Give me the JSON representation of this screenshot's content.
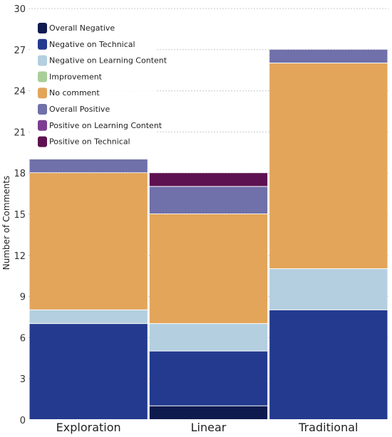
{
  "chart_data": {
    "type": "bar",
    "stacked": true,
    "title": "",
    "xlabel": "",
    "ylabel": "Number of Comments",
    "ylim": [
      0,
      30
    ],
    "yticks": [
      0,
      3,
      6,
      9,
      12,
      15,
      18,
      21,
      24,
      27,
      30
    ],
    "grid": true,
    "legend_position": "top-left",
    "categories": [
      "Exploration",
      "Linear",
      "Traditional"
    ],
    "series": [
      {
        "name": "Overall Negative",
        "color": "#0f1a4f",
        "values": [
          0,
          1,
          0
        ]
      },
      {
        "name": "Negative on Technical",
        "color": "#233a8e",
        "values": [
          7,
          4,
          8
        ]
      },
      {
        "name": "Negative on Learning Content",
        "color": "#b3cfe0",
        "values": [
          1,
          2,
          3
        ]
      },
      {
        "name": "Improvement",
        "color": "#a8cf98",
        "values": [
          0,
          0,
          0
        ]
      },
      {
        "name": "No comment",
        "color": "#e2a55a",
        "values": [
          10,
          8,
          15
        ]
      },
      {
        "name": "Overall Positive",
        "color": "#7070aa",
        "values": [
          1,
          2,
          1
        ]
      },
      {
        "name": "Positive on Learning Content",
        "color": "#7d3d91",
        "values": [
          0,
          0,
          0
        ]
      },
      {
        "name": "Positive on Technical",
        "color": "#5e1150",
        "values": [
          0,
          1,
          0
        ]
      }
    ]
  }
}
